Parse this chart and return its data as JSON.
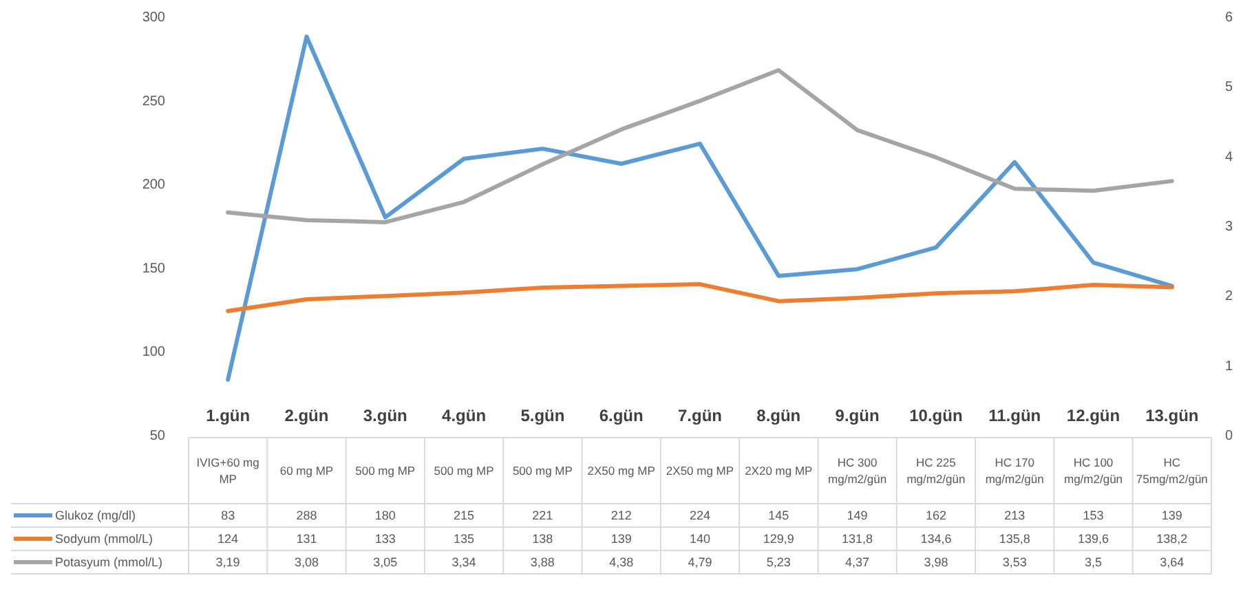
{
  "chart_data": {
    "type": "line",
    "categories": [
      "1.gün",
      "2.gün",
      "3.gün",
      "4.gün",
      "5.gün",
      "6.gün",
      "7.gün",
      "8.gün",
      "9.gün",
      "10.gün",
      "11.gün",
      "12.gün",
      "13.gün"
    ],
    "series": [
      {
        "name": "Glukoz (mg/dl)",
        "color": "#5b9bd5",
        "values": [
          83,
          288,
          180,
          215,
          221,
          212,
          224,
          145,
          149,
          162,
          213,
          153,
          139
        ],
        "value_labels": [
          "83",
          "288",
          "180",
          "215",
          "221",
          "212",
          "224",
          "145",
          "149",
          "162",
          "213",
          "153",
          "139"
        ]
      },
      {
        "name": "Sodyum (mmol/L)",
        "color": "#ed7d31",
        "values": [
          124,
          131,
          133,
          135,
          138,
          139,
          140,
          129.9,
          131.8,
          134.6,
          135.8,
          139.6,
          138.2
        ],
        "value_labels": [
          "124",
          "131",
          "133",
          "135",
          "138",
          "139",
          "140",
          "129,9",
          "131,8",
          "134,6",
          "135,8",
          "139,6",
          "138,2"
        ]
      },
      {
        "name": "Potasyum (mmol/L)",
        "color": "#a5a5a5",
        "axis": "y2",
        "values": [
          3.19,
          3.08,
          3.05,
          3.34,
          3.88,
          4.38,
          4.79,
          5.23,
          4.37,
          3.98,
          3.53,
          3.5,
          3.64
        ],
        "value_labels": [
          "3,19",
          "3,08",
          "3,05",
          "3,34",
          "3,88",
          "4,38",
          "4,79",
          "5,23",
          "4,37",
          "3,98",
          "3,53",
          "3,5",
          "3,64"
        ]
      }
    ],
    "ylim": [
      50,
      300
    ],
    "yticks": [
      50,
      100,
      150,
      200,
      250,
      300
    ],
    "y2lim": [
      0,
      6
    ],
    "y2ticks": [
      0,
      1,
      2,
      3,
      4,
      5,
      6
    ],
    "legend": "bottom left",
    "grid": false,
    "marker": "none",
    "line_style": "solid",
    "annotations": [
      "IVIG+60 mg MP",
      "60 mg MP",
      "500 mg MP",
      "500 mg MP",
      "500 mg MP",
      "2X50 mg MP",
      "2X50 mg MP",
      "2X20 mg MP",
      "HC 300 mg/m2/gün",
      "HC 225 mg/m2/gün",
      "HC 170 mg/m2/gün",
      "HC 100 mg/m2/gün",
      "HC 75mg/m2/gün"
    ]
  }
}
